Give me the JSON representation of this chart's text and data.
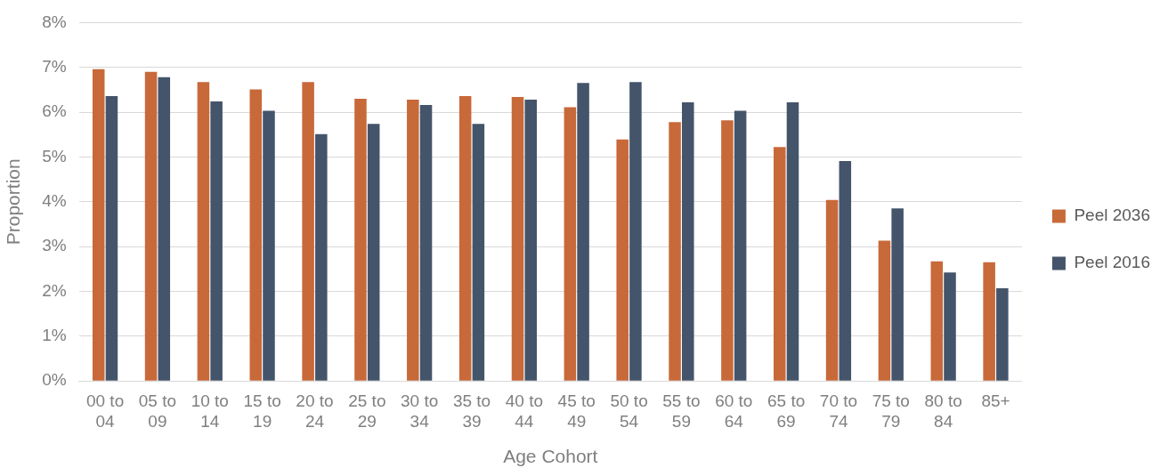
{
  "chart_data": {
    "type": "bar",
    "xlabel": "Age Cohort",
    "ylabel": "Proportion",
    "categories": [
      "00 to 04",
      "05 to 09",
      "10 to 14",
      "15 to 19",
      "20 to 24",
      "25 to 29",
      "30 to 34",
      "35 to 39",
      "40 to 44",
      "45 to 49",
      "50 to 54",
      "55 to 59",
      "60 to 64",
      "65 to 69",
      "70 to 74",
      "75 to 79",
      "80 to 84",
      "85+"
    ],
    "series": [
      {
        "name": "Peel 2036",
        "color": "#c8693a",
        "values": [
          6.96,
          6.9,
          6.67,
          6.51,
          6.67,
          6.3,
          6.28,
          6.36,
          6.34,
          6.11,
          5.39,
          5.78,
          5.82,
          5.22,
          4.04,
          3.13,
          2.67,
          2.65
        ]
      },
      {
        "name": "Peel 2016",
        "color": "#44546a",
        "values": [
          6.36,
          6.78,
          6.24,
          6.03,
          5.51,
          5.74,
          6.16,
          5.74,
          6.28,
          6.65,
          6.67,
          6.22,
          6.03,
          6.22,
          4.91,
          3.85,
          2.42,
          2.07
        ]
      }
    ],
    "ylim": [
      0,
      8
    ],
    "yticks": [
      {
        "value": 0,
        "label": "0%"
      },
      {
        "value": 1,
        "label": "1%"
      },
      {
        "value": 2,
        "label": "2%"
      },
      {
        "value": 3,
        "label": "3%"
      },
      {
        "value": 4,
        "label": "4%"
      },
      {
        "value": 5,
        "label": "5%"
      },
      {
        "value": 6,
        "label": "6%"
      },
      {
        "value": 7,
        "label": "7%"
      },
      {
        "value": 8,
        "label": "8%"
      }
    ],
    "grid": "y",
    "legend": "right"
  }
}
